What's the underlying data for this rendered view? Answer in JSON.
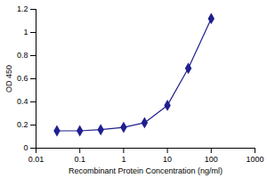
{
  "chart_data": {
    "type": "line",
    "x_label": "Recombinant Protein Concentration (ng/ml)",
    "y_label": "OD 450",
    "x": [
      0.03,
      0.1,
      0.3,
      1,
      3,
      10,
      30,
      100
    ],
    "values": [
      0.15,
      0.15,
      0.16,
      0.18,
      0.22,
      0.37,
      0.69,
      1.12
    ],
    "color": "#1f1f8f",
    "marker": "diamond",
    "log": "x",
    "grid": false,
    "xlim": [
      0.01,
      1000
    ],
    "xticks": [
      0.01,
      0.1,
      1,
      10,
      100,
      1000
    ],
    "ylim": [
      0,
      1.2
    ],
    "yticks": [
      0,
      0.2,
      0.4,
      0.6,
      0.8,
      1,
      1.2
    ]
  }
}
